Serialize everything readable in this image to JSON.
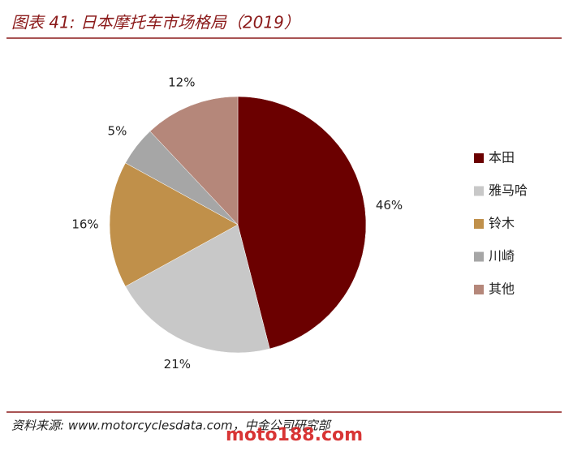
{
  "chart_data": {
    "type": "pie",
    "title": "图表 41: 日本摩托车市场格局（2019）",
    "categories": [
      "本田",
      "雅马哈",
      "铃木",
      "川崎",
      "其他"
    ],
    "values": [
      46,
      21,
      16,
      5,
      12
    ],
    "value_labels": [
      "46%",
      "21%",
      "16%",
      "5%",
      "12%"
    ],
    "colors": [
      "#6b0000",
      "#c8c8c8",
      "#c0904a",
      "#a6a6a6",
      "#b5877a"
    ],
    "legend": "right",
    "source": "资料来源: www.motorcyclesdata.com，中金公司研究部",
    "watermark": "moto188.com"
  }
}
